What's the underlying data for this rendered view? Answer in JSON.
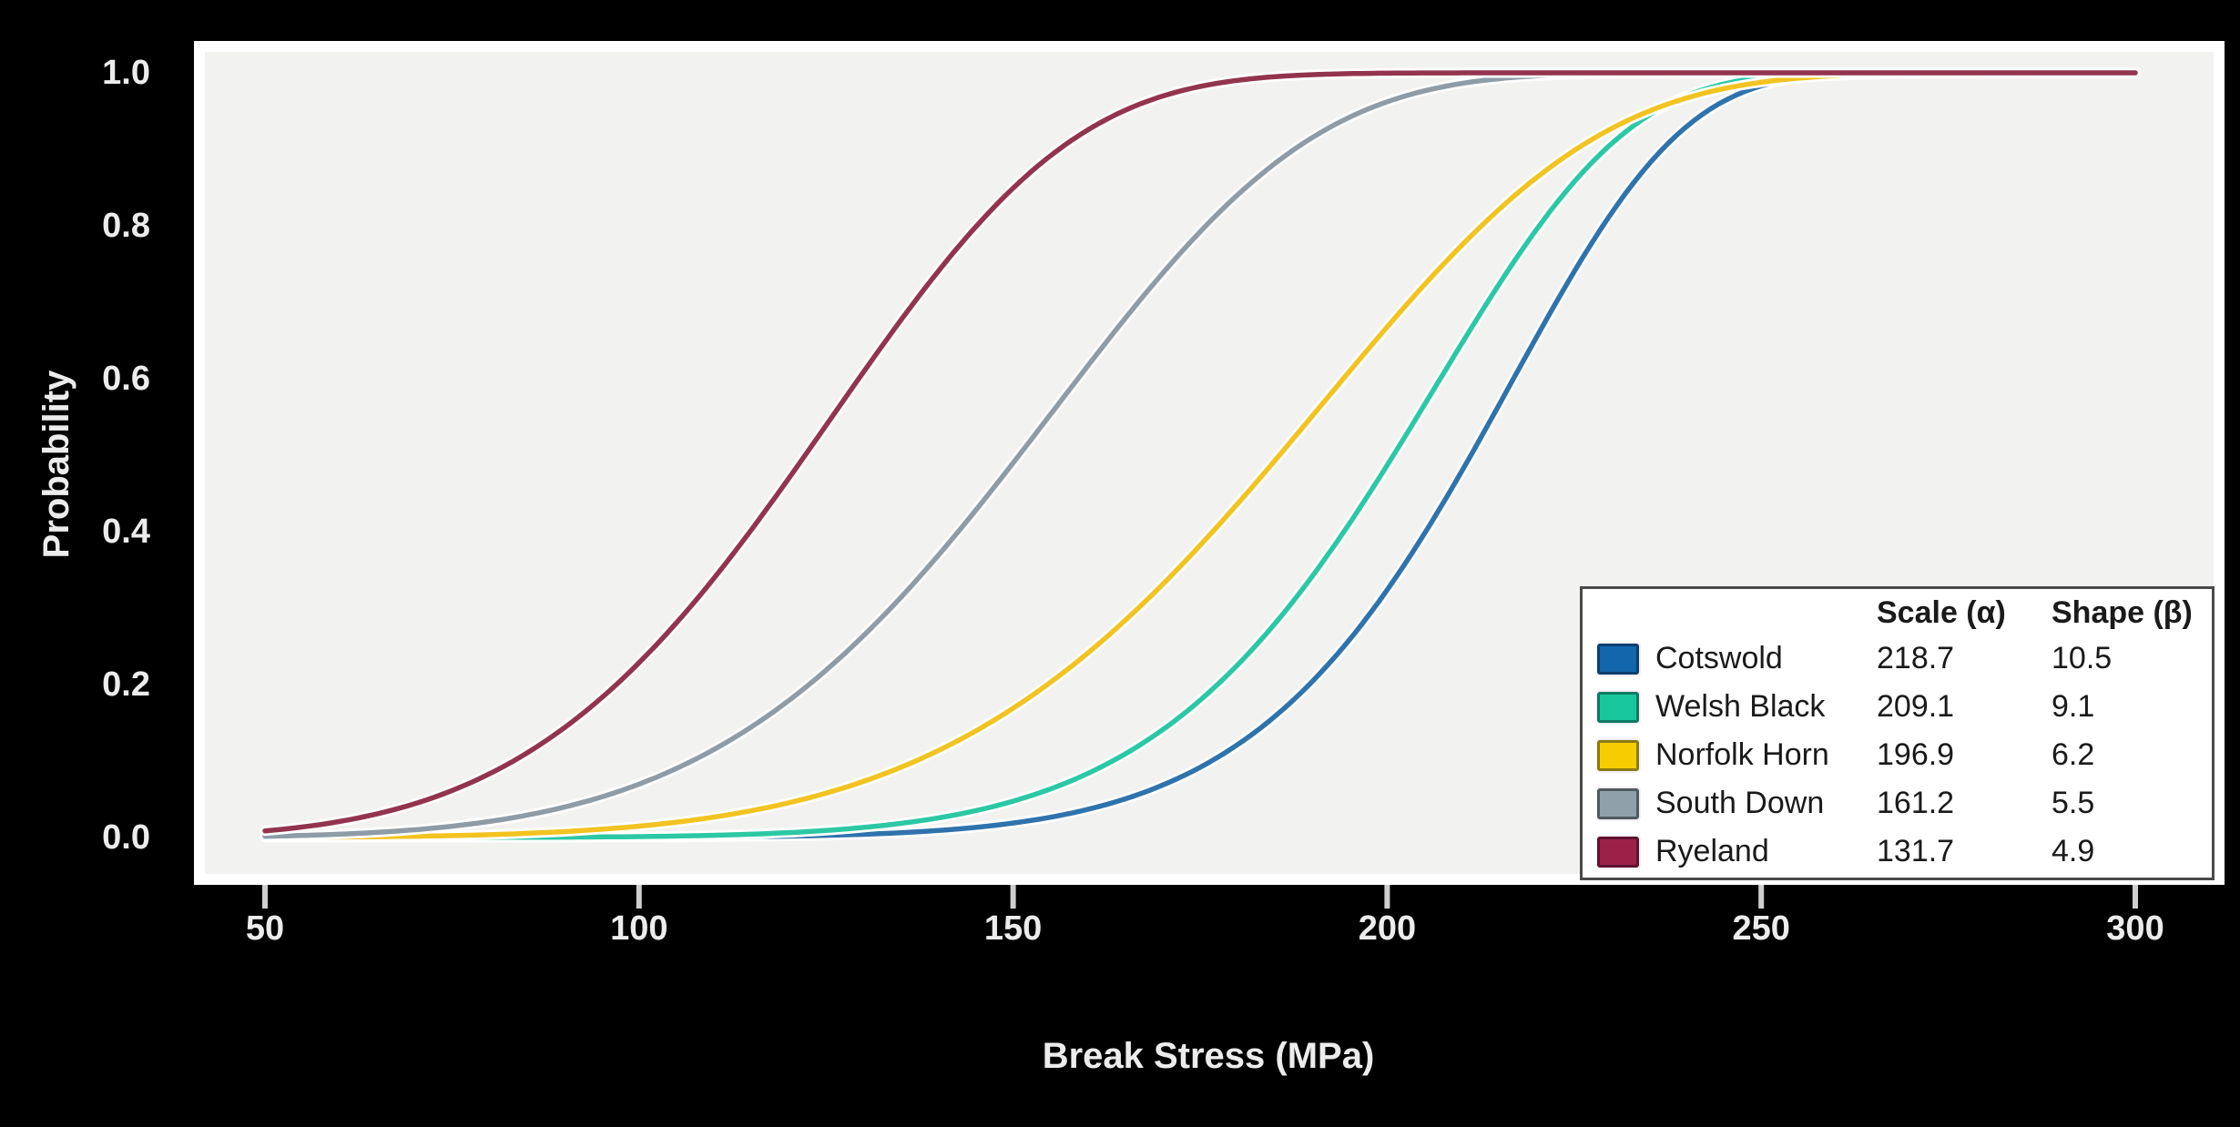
{
  "figure": {
    "background": "#000000"
  },
  "chart_data": {
    "type": "line",
    "curve_family": "Weibull CDF: F(x) = 1 - exp(-(x/scale)^shape)",
    "title": "",
    "xlabel": "Break Stress (MPa)",
    "ylabel": "Probability",
    "x_ticks": [
      50,
      100,
      150,
      200,
      250,
      300
    ],
    "y_ticks": [
      1.0,
      0.8,
      0.6,
      0.4,
      0.2,
      0.0
    ],
    "xlim": [
      42,
      310
    ],
    "ylim": [
      -0.05,
      1.03
    ],
    "curve_x_range": [
      50,
      300
    ],
    "grid": false,
    "panel_bg": "#f2f2f1",
    "panel_border": "#ffffff",
    "tick_mark_color": "#cfcfcf",
    "axis_text_color": "#ececec",
    "legend": {
      "position": "bottom-right",
      "col_headers": [
        "Scale (α)",
        "Shape (β)"
      ],
      "background": "#ffffff",
      "border_color": "#4a4a4a"
    },
    "series": [
      {
        "name": "Cotswold",
        "scale": 218.7,
        "shape": 10.5,
        "line_color": "#2f73ad",
        "swatch_fill": "#1266ac",
        "swatch_border": "#0c3f6e"
      },
      {
        "name": "Welsh Black",
        "scale": 209.1,
        "shape": 9.1,
        "line_color": "#2cc8a5",
        "swatch_fill": "#18c79b",
        "swatch_border": "#0f7a63"
      },
      {
        "name": "Norfolk Horn",
        "scale": 196.9,
        "shape": 6.2,
        "line_color": "#f2c321",
        "swatch_fill": "#f6ce00",
        "swatch_border": "#8a7a14"
      },
      {
        "name": "South Down",
        "scale": 161.2,
        "shape": 5.5,
        "line_color": "#8e9ca7",
        "swatch_fill": "#90a0a8",
        "swatch_border": "#4f5a60"
      },
      {
        "name": "Ryeland",
        "scale": 131.7,
        "shape": 4.9,
        "line_color": "#93344f",
        "swatch_fill": "#9c2148",
        "swatch_border": "#5e1230"
      }
    ]
  }
}
